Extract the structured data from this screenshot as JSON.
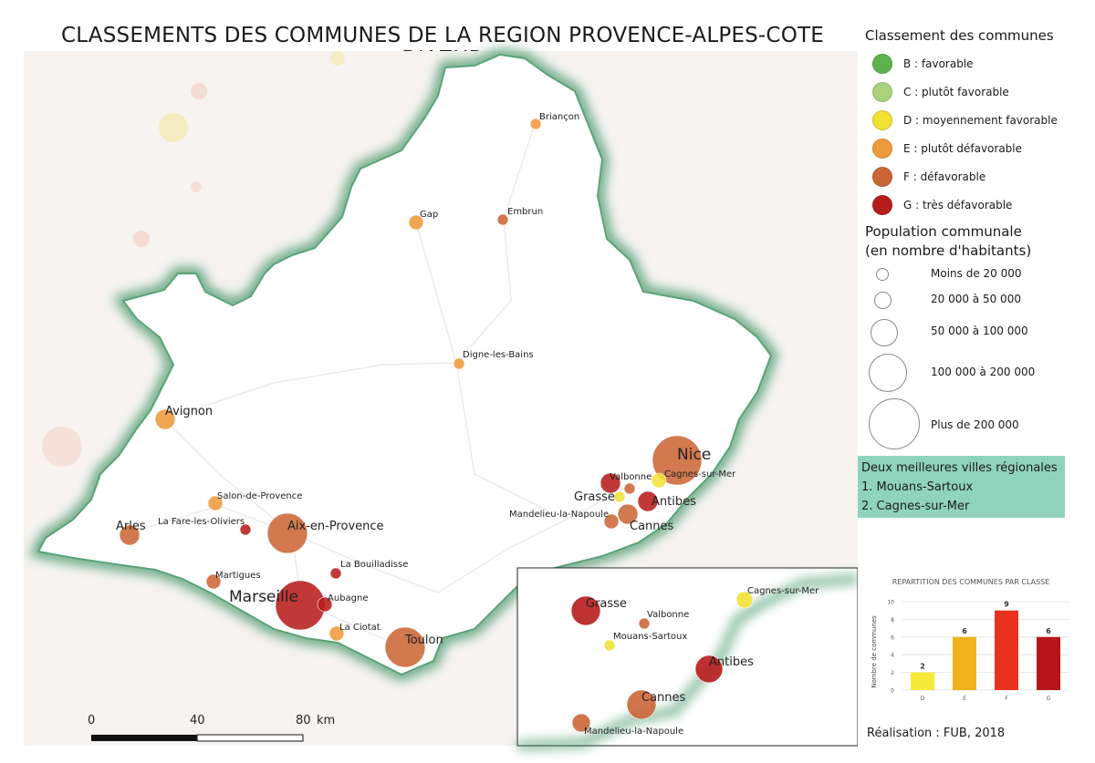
{
  "title": "CLASSEMENTS DES COMMUNES DE LA REGION PROVENCE-ALPES-COTE D'AZUR",
  "colors": {
    "B": "#5fb34f",
    "C": "#a9d27a",
    "D": "#f2e234",
    "E": "#ef9a3c",
    "F": "#cc6637",
    "G": "#b71c1c",
    "region_glow": "#2e8b57",
    "best_box": "#8fd3bd"
  },
  "legend": {
    "class_title": "Classement des communes",
    "classes": [
      {
        "key": "B",
        "label": "B : favorable"
      },
      {
        "key": "C",
        "label": "C : plutôt favorable"
      },
      {
        "key": "D",
        "label": "D : moyennement favorable"
      },
      {
        "key": "E",
        "label": "E : plutôt défavorable"
      },
      {
        "key": "F",
        "label": "F : défavorable"
      },
      {
        "key": "G",
        "label": "G : très défavorable"
      }
    ],
    "pop_title_1": "Population communale",
    "pop_title_2": "(en nombre d'habitants)",
    "pop_sizes": [
      {
        "label": "Moins de 20 000"
      },
      {
        "label": "20 000 à 50 000"
      },
      {
        "label": "50 000 à 100 000"
      },
      {
        "label": "100 000 à 200 000"
      },
      {
        "label": "Plus de 200 000"
      }
    ]
  },
  "best": {
    "title": "Deux meilleures villes régionales",
    "items": [
      "1. Mouans-Sartoux",
      "2. Cagnes-sur-Mer"
    ]
  },
  "cities": [
    {
      "name": "Briançon",
      "cls": "E",
      "size": 0
    },
    {
      "name": "Embrun",
      "cls": "F",
      "size": 0
    },
    {
      "name": "Gap",
      "cls": "E",
      "size": 1
    },
    {
      "name": "Digne-les-Bains",
      "cls": "E",
      "size": 0
    },
    {
      "name": "Avignon",
      "cls": "E",
      "size": 2
    },
    {
      "name": "Salon-de-Provence",
      "cls": "E",
      "size": 1
    },
    {
      "name": "La Fare-les-Oliviers",
      "cls": "G",
      "size": 0
    },
    {
      "name": "Arles",
      "cls": "F",
      "size": 2
    },
    {
      "name": "Aix-en-Provence",
      "cls": "F",
      "size": 3
    },
    {
      "name": "La Bouilladisse",
      "cls": "G",
      "size": 0
    },
    {
      "name": "Martigues",
      "cls": "F",
      "size": 1
    },
    {
      "name": "Marseille",
      "cls": "G",
      "size": 4
    },
    {
      "name": "Aubagne",
      "cls": "G",
      "size": 1
    },
    {
      "name": "La Ciotat",
      "cls": "E",
      "size": 1
    },
    {
      "name": "Toulon",
      "cls": "F",
      "size": 3
    },
    {
      "name": "Nice",
      "cls": "F",
      "size": 4
    },
    {
      "name": "Valbonne",
      "cls": "F",
      "size": 0
    },
    {
      "name": "Cagnes-sur-Mer",
      "cls": "D",
      "size": 1
    },
    {
      "name": "Grasse",
      "cls": "G",
      "size": 2
    },
    {
      "name": "Antibes",
      "cls": "G",
      "size": 2
    },
    {
      "name": "Mandelieu-la-Napoule",
      "cls": "F",
      "size": 1
    },
    {
      "name": "Cannes",
      "cls": "F",
      "size": 2
    },
    {
      "name": "Mouans-Sartoux",
      "cls": "D",
      "size": 0
    }
  ],
  "scale": {
    "labels": [
      "0",
      "40",
      "80"
    ],
    "unit": "km"
  },
  "credit": "Réalisation : FUB, 2018",
  "chart_data": {
    "type": "bar",
    "title": "REPARTITION DES COMMUNES PAR CLASSE",
    "ylabel": "Nombre de communes",
    "categories": [
      "D",
      "E",
      "F",
      "G"
    ],
    "values": [
      2,
      6,
      9,
      6
    ],
    "colors": [
      "#f5ea3a",
      "#f0b31c",
      "#e8321e",
      "#b7151c"
    ],
    "ylim": [
      0,
      10
    ],
    "yticks": [
      0,
      2,
      4,
      6,
      8,
      10
    ]
  }
}
